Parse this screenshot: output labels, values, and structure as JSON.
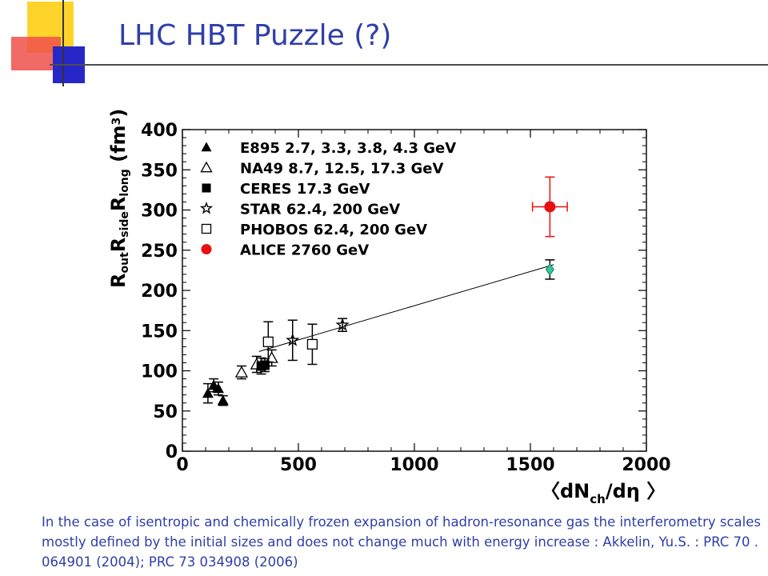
{
  "slide": {
    "title": "LHC HBT Puzzle (?)",
    "caption": "In the case of isentropic and chemically frozen expansion of hadron-resonance gas  the interferometry scales mostly defined by the initial sizes and does not change much with energy increase : Akkelin, Yu.S. : PRC 70 . 064901 (2004);  PRC 73 034908 (2006)",
    "colors": {
      "title": "#2f3fa8",
      "caption": "#2f3fa8",
      "deco_yellow": "#ffd42a",
      "deco_red": "#f0504a",
      "deco_blue": "#2727c8"
    }
  },
  "chart_data": {
    "type": "scatter",
    "xlabel": "〈dN ch /dη 〉",
    "ylabel": "R out R side R long (fm 3 )",
    "xlim": [
      0,
      2000
    ],
    "ylim": [
      0,
      400
    ],
    "x_ticks": [
      "0",
      "500",
      "1000",
      "1500",
      "2000"
    ],
    "y_ticks": [
      "0",
      "50",
      "100",
      "150",
      "200",
      "250",
      "300",
      "350",
      "400"
    ],
    "legend_position": "top-left",
    "series": [
      {
        "name": "E895 2.7, 3.3, 3.8, 4.3 GeV",
        "marker": "filled-triangle",
        "color": "#000000",
        "points": [
          {
            "x": 110,
            "y": 72,
            "err": 12
          },
          {
            "x": 135,
            "y": 82,
            "err": 8
          },
          {
            "x": 155,
            "y": 78,
            "err": 8
          },
          {
            "x": 175,
            "y": 63,
            "err": 6
          }
        ]
      },
      {
        "name": "NA49 8.7, 12.5, 17.3 GeV",
        "marker": "open-triangle",
        "color": "#000000",
        "points": [
          {
            "x": 255,
            "y": 98,
            "err": 8
          },
          {
            "x": 320,
            "y": 108,
            "err": 10
          },
          {
            "x": 385,
            "y": 116,
            "err": 10
          }
        ]
      },
      {
        "name": "CERES 17.3 GeV",
        "marker": "filled-square",
        "color": "#000000",
        "points": [
          {
            "x": 340,
            "y": 106,
            "err": 10
          },
          {
            "x": 355,
            "y": 107,
            "err": 8
          }
        ]
      },
      {
        "name": "STAR 62.4, 200 GeV",
        "marker": "star",
        "color": "#000000",
        "points": [
          {
            "x": 475,
            "y": 138,
            "err": 25
          },
          {
            "x": 690,
            "y": 157,
            "err": 8
          }
        ]
      },
      {
        "name": "PHOBOS 62.4, 200 GeV",
        "marker": "open-square",
        "color": "#000000",
        "points": [
          {
            "x": 370,
            "y": 136,
            "err": 25
          },
          {
            "x": 560,
            "y": 133,
            "err": 25
          }
        ]
      },
      {
        "name": "ALICE 2760 GeV",
        "marker": "filled-circle",
        "color": "#e81010",
        "points": [
          {
            "x": 1584,
            "y": 304,
            "err": 37,
            "xerr": 75
          }
        ]
      }
    ],
    "extra_points": [
      {
        "x": 1584,
        "y": 226,
        "err": 12,
        "marker": "diamond",
        "color": "#2fc8a0"
      }
    ],
    "fit_line": {
      "x": [
        330,
        1600
      ],
      "y": [
        124,
        232
      ]
    }
  }
}
